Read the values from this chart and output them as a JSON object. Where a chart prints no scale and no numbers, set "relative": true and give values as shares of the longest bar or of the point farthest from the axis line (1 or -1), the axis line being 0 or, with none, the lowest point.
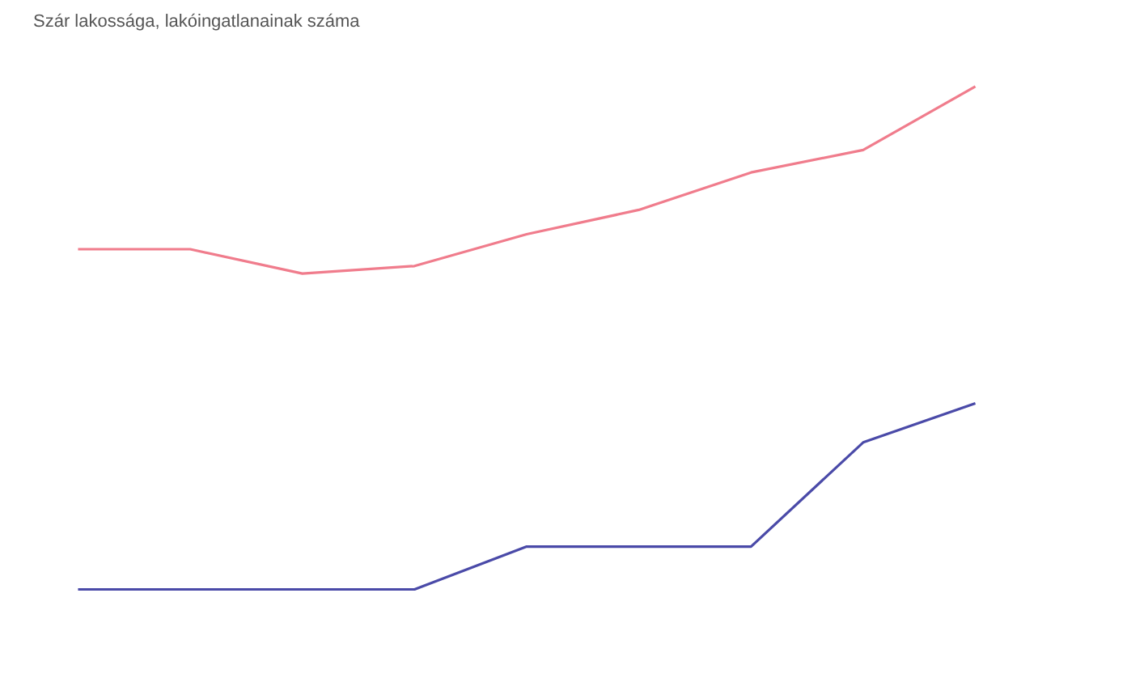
{
  "chart_data": [
    {
      "type": "line",
      "title": "Szár lakossága, lakóingatlanainak száma",
      "relative": true,
      "categories": [
        null,
        null,
        null,
        null,
        null,
        null,
        null,
        null,
        null
      ],
      "series": [
        {
          "color": "#f07c8c",
          "values": [
            0.13,
            0.13,
            0,
            0.04,
            0.21,
            0.34,
            0.54,
            0.66,
            1
          ]
        }
      ]
    },
    {
      "type": "line",
      "relative": true,
      "categories": [
        null,
        null,
        null,
        null,
        null,
        null,
        null,
        null,
        null
      ],
      "series": [
        {
          "color": "#4a4aa8",
          "values": [
            0,
            0,
            0,
            0,
            0.23,
            0.23,
            0.23,
            0.79,
            1
          ]
        }
      ]
    }
  ]
}
